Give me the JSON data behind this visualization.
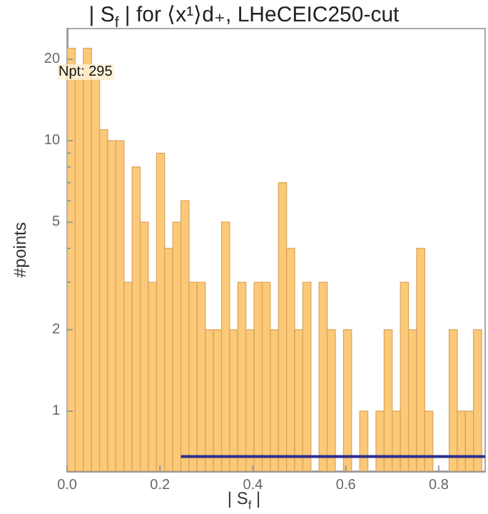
{
  "chart_data": {
    "type": "histogram",
    "title": "| S$_{f}$ | for ⟨x¹⟩d₊, LHeCEIC250-cut",
    "xlabel": "| S$_{f}$ |",
    "ylabel": "#points",
    "annotations": [
      "Npt: 295"
    ],
    "bins": [
      0,
      0.0175,
      0.035,
      0.0525,
      0.07,
      0.0875,
      0.105,
      0.1225,
      0.14,
      0.1575,
      0.175,
      0.1925,
      0.21,
      0.2275,
      0.245,
      0.2625,
      0.28,
      0.2975,
      0.315,
      0.3325,
      0.35,
      0.3675,
      0.385,
      0.4025,
      0.42,
      0.4375,
      0.455,
      0.4725,
      0.49,
      0.5075,
      0.525,
      0.5425,
      0.56,
      0.5775,
      0.595,
      0.6125,
      0.63,
      0.6475,
      0.665,
      0.6825,
      0.7,
      0.7175,
      0.735,
      0.7525,
      0.77,
      0.7875,
      0.805,
      0.8225,
      0.84,
      0.8575,
      0.875,
      0.8925
    ],
    "series": [
      {
        "color": "#fcc978",
        "values": [
          22,
          17,
          22,
          17,
          11,
          10,
          10,
          3,
          8,
          5,
          3,
          9,
          4,
          5,
          6,
          3,
          3,
          2,
          2,
          5,
          2,
          3,
          2,
          3,
          3,
          2,
          7,
          4,
          2,
          3,
          null,
          3,
          2,
          null,
          2,
          null,
          1,
          null,
          1,
          2,
          1,
          3,
          2,
          4,
          1,
          null,
          null,
          2,
          1,
          1,
          2
        ]
      },
      {
        "type": "line",
        "color": "#2e2e8e",
        "x": [
          0.245,
          0.9
        ],
        "values": [
          0.68,
          0.68
        ]
      }
    ],
    "log": "y",
    "xlim": [
      0,
      0.9
    ],
    "ylim": [
      0.6,
      26
    ],
    "xticks": [
      {
        "value": 0,
        "label": "0.0"
      },
      0.2,
      0.4,
      0.6,
      0.8
    ],
    "yticks": [
      1,
      2,
      {
        "value": 3,
        "label": null
      },
      {
        "value": 4,
        "label": null
      },
      5,
      {
        "value": 6,
        "label": null
      },
      {
        "value": 7,
        "label": null
      },
      {
        "value": 8,
        "label": null
      },
      {
        "value": 9,
        "label": null
      },
      10,
      20
    ]
  }
}
